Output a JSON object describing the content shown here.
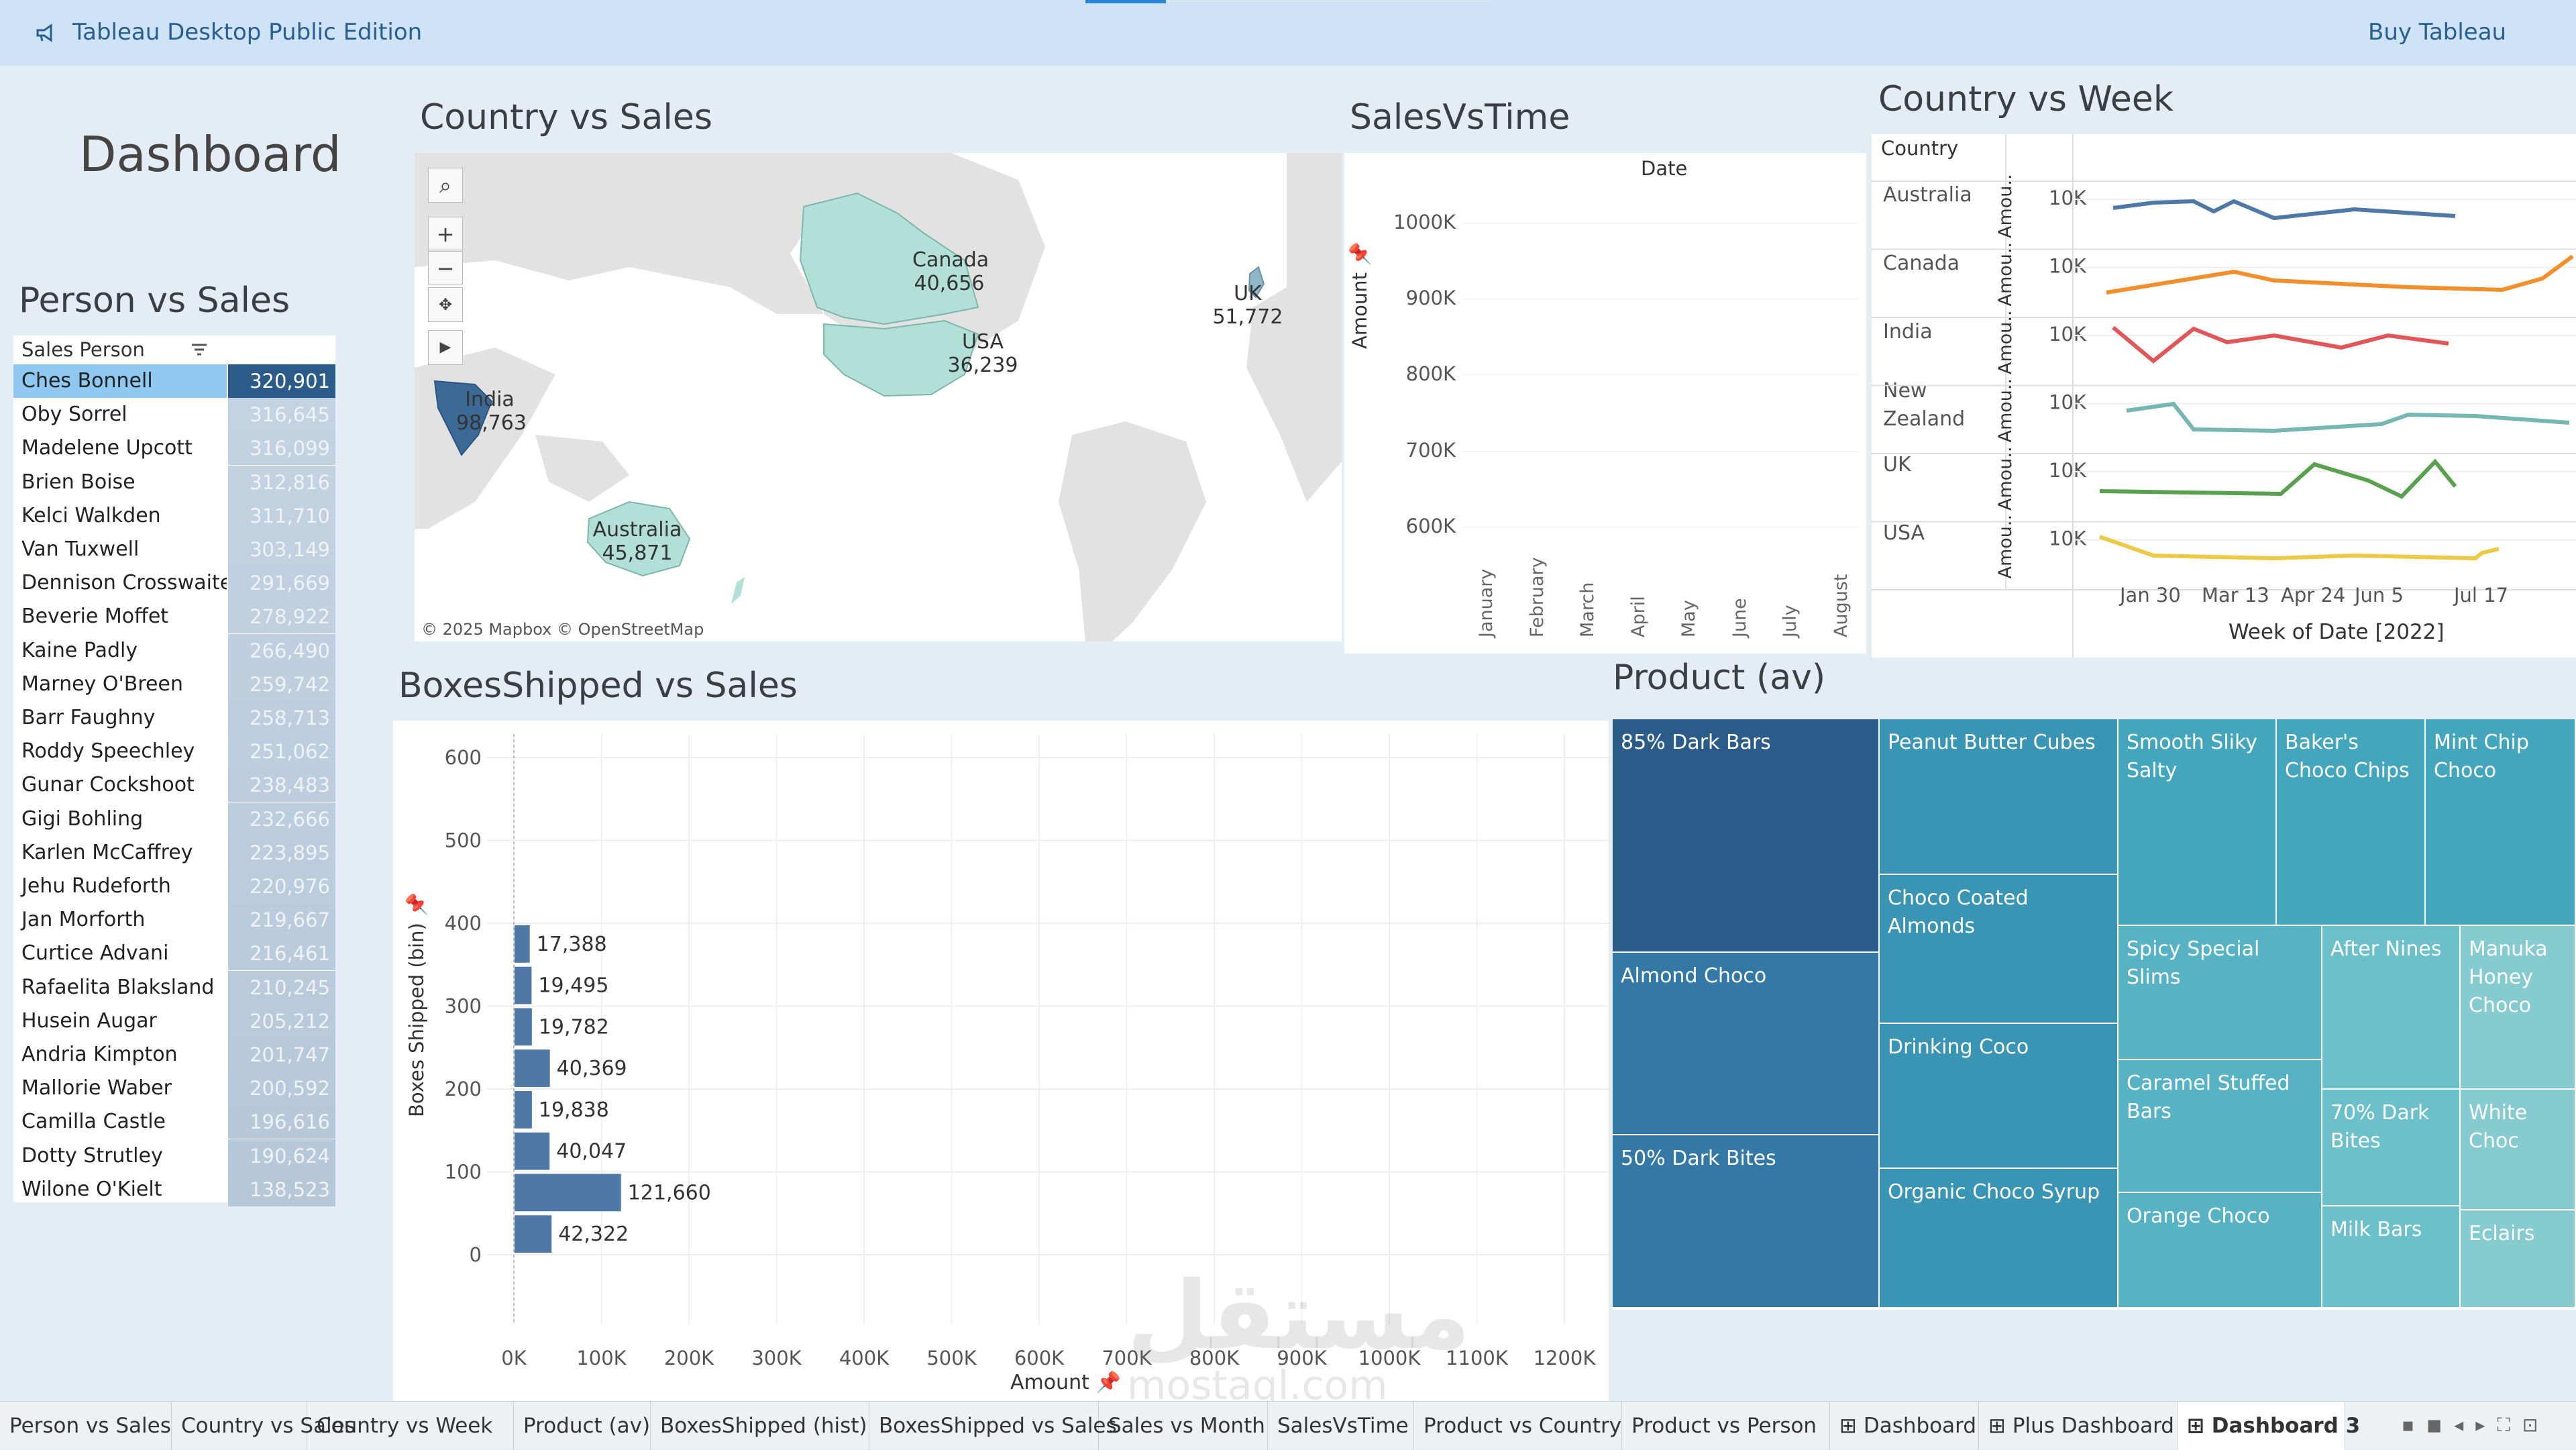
{
  "app": {
    "title": "Tableau Desktop Public Edition",
    "buy": "Buy Tableau"
  },
  "dashboard_title": "Dashboard",
  "person_sales": {
    "heading": "Person vs Sales",
    "header": "Sales Person",
    "rows": [
      {
        "name": "Ches Bonnell",
        "value": "320,901"
      },
      {
        "name": "Oby Sorrel",
        "value": "316,645"
      },
      {
        "name": "Madelene Upcott",
        "value": "316,099"
      },
      {
        "name": "Brien Boise",
        "value": "312,816"
      },
      {
        "name": "Kelci Walkden",
        "value": "311,710"
      },
      {
        "name": "Van Tuxwell",
        "value": "303,149"
      },
      {
        "name": "Dennison Crosswaite",
        "value": "291,669"
      },
      {
        "name": "Beverie Moffet",
        "value": "278,922"
      },
      {
        "name": "Kaine Padly",
        "value": "266,490"
      },
      {
        "name": "Marney O'Breen",
        "value": "259,742"
      },
      {
        "name": "Barr Faughny",
        "value": "258,713"
      },
      {
        "name": "Roddy Speechley",
        "value": "251,062"
      },
      {
        "name": "Gunar Cockshoot",
        "value": "238,483"
      },
      {
        "name": "Gigi Bohling",
        "value": "232,666"
      },
      {
        "name": "Karlen McCaffrey",
        "value": "223,895"
      },
      {
        "name": "Jehu Rudeforth",
        "value": "220,976"
      },
      {
        "name": "Jan Morforth",
        "value": "219,667"
      },
      {
        "name": "Curtice Advani",
        "value": "216,461"
      },
      {
        "name": "Rafaelita Blaksland",
        "value": "210,245"
      },
      {
        "name": "Husein Augar",
        "value": "205,212"
      },
      {
        "name": "Andria Kimpton",
        "value": "201,747"
      },
      {
        "name": "Mallorie Waber",
        "value": "200,592"
      },
      {
        "name": "Camilla Castle",
        "value": "196,616"
      },
      {
        "name": "Dotty Strutley",
        "value": "190,624"
      },
      {
        "name": "Wilone O'Kielt",
        "value": "138,523"
      }
    ]
  },
  "country_sales": {
    "heading": "Country vs Sales",
    "attribution": "© 2025 Mapbox © OpenStreetMap",
    "labels": [
      {
        "name": "Canada",
        "value": "40,656"
      },
      {
        "name": "USA",
        "value": "36,239"
      },
      {
        "name": "UK",
        "value": "51,772"
      },
      {
        "name": "India",
        "value": "98,763"
      },
      {
        "name": "Australia",
        "value": "45,871"
      }
    ]
  },
  "sales_vs_time": {
    "heading": "SalesVsTime",
    "col_header": "Date",
    "ylabel": "Amount",
    "yticks": [
      "1000K",
      "900K",
      "800K",
      "700K",
      "600K"
    ],
    "months": [
      "January",
      "February",
      "March",
      "April",
      "May",
      "June",
      "July",
      "August"
    ]
  },
  "country_week": {
    "heading": "Country vs Week",
    "col_header": "Country",
    "countries": [
      "Australia",
      "Canada",
      "India",
      "New Zealand",
      "UK",
      "USA"
    ],
    "ytick": "10K",
    "axis_label": "Amou..",
    "xticks": [
      "Jan 30",
      "Mar 13",
      "Apr 24",
      "Jun 5",
      "Jul 17"
    ],
    "xlabel": "Week of Date [2022]",
    "colors": [
      "#4e79a7",
      "#f28e2b",
      "#e15759",
      "#76b7b2",
      "#59a14f",
      "#edc948"
    ]
  },
  "boxes_sales": {
    "heading": "BoxesShipped vs Sales",
    "ylabel": "Boxes Shipped (bin)",
    "xlabel": "Amount",
    "yticks": [
      "600",
      "500",
      "400",
      "300",
      "200",
      "100",
      "0"
    ],
    "xticks": [
      "0K",
      "100K",
      "200K",
      "300K",
      "400K",
      "500K",
      "600K",
      "700K",
      "800K",
      "900K",
      "1000K",
      "1100K",
      "1200K"
    ]
  },
  "chart_data": {
    "type": "bar",
    "orientation": "horizontal",
    "title": "BoxesShipped vs Sales",
    "xlabel": "Amount",
    "ylabel": "Boxes Shipped (bin)",
    "xlim": [
      0,
      1250000
    ],
    "ylim": [
      0,
      600
    ],
    "categories": [
      375,
      325,
      275,
      225,
      175,
      125,
      75,
      25
    ],
    "values": [
      17388,
      19495,
      19782,
      40369,
      19838,
      40047,
      121660,
      42322
    ],
    "labels": [
      "17,388",
      "19,495",
      "19,782",
      "40,369",
      "19,838",
      "40,047",
      "121,660",
      "42,322"
    ],
    "grid": true
  },
  "product": {
    "heading": "Product (av)",
    "cells": [
      "85% Dark Bars",
      "Almond Choco",
      "50% Dark Bites",
      "Peanut Butter Cubes",
      "Choco Coated Almonds",
      "Drinking Coco",
      "Organic Choco Syrup",
      "Smooth Sliky Salty",
      "Baker's Choco Chips",
      "Mint Chip Choco",
      "Spicy Special Slims",
      "Caramel Stuffed Bars",
      "Orange Choco",
      "After Nines",
      "70% Dark Bites",
      "Milk Bars",
      "Manuka Honey Choco",
      "White Choc",
      "Eclairs"
    ]
  },
  "tabs": [
    "Person vs Sales",
    "Country vs Sales",
    "Country vs Week",
    "Product (av)",
    "BoxesShipped (hist)",
    "BoxesShipped vs Sales",
    "Sales vs Month",
    "SalesVsTime",
    "Product vs Country",
    "Product vs Person",
    "Dashboard",
    "Plus Dashboard",
    "Dashboard 3"
  ],
  "watermark": {
    "arabic": "مستقل",
    "latin": "mostaql.com"
  }
}
